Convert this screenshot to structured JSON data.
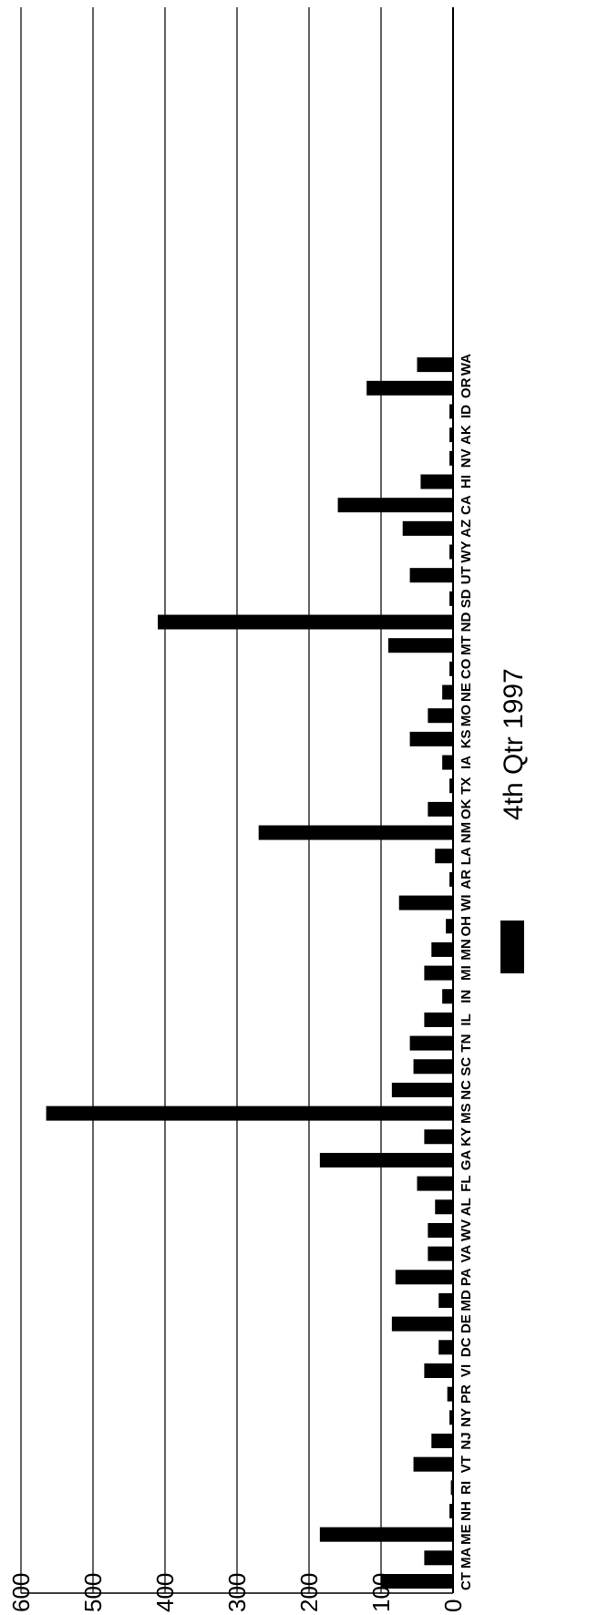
{
  "chart_data": {
    "type": "bar",
    "orientation": "rotated",
    "categories": [
      "CT",
      "MA",
      "ME",
      "NH",
      "RI",
      "VT",
      "NJ",
      "NY",
      "PR",
      "VI",
      "DC",
      "DE",
      "MD",
      "PA",
      "VA",
      "WV",
      "AL",
      "FL",
      "GA",
      "KY",
      "MS",
      "NC",
      "SC",
      "TN",
      "IL",
      "IN",
      "MI",
      "MN",
      "OH",
      "WI",
      "AR",
      "LA",
      "NM",
      "OK",
      "TX",
      "IA",
      "KS",
      "MO",
      "NE",
      "CO",
      "MT",
      "ND",
      "SD",
      "UT",
      "WY",
      "AZ",
      "CA",
      "HI",
      "NV",
      "AK",
      "ID",
      "OR",
      "WA"
    ],
    "series": [
      {
        "name": "4th Qtr 1997",
        "color": "#000000",
        "values": [
          100,
          40,
          185,
          5,
          3,
          55,
          30,
          5,
          8,
          40,
          20,
          85,
          20,
          80,
          35,
          35,
          25,
          50,
          185,
          40,
          565,
          85,
          55,
          60,
          40,
          15,
          40,
          30,
          10,
          75,
          5,
          25,
          270,
          35,
          5,
          15,
          60,
          35,
          15,
          5,
          90,
          410,
          5,
          60,
          5,
          70,
          160,
          45,
          5,
          5,
          5,
          120,
          50
        ]
      }
    ],
    "ylim": [
      0,
      600
    ],
    "yticks": [
      "0",
      "100",
      "200",
      "300",
      "400",
      "500",
      "600"
    ],
    "grid": true,
    "legend": {
      "label": "4th Qtr 1997",
      "placement": "bottom"
    }
  }
}
